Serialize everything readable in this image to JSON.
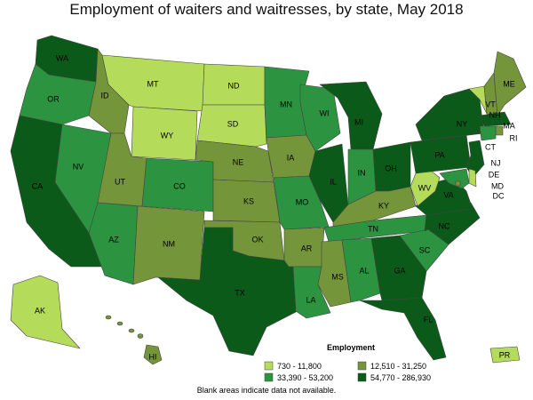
{
  "title": "Employment of waiters and waitresses, by state, May 2018",
  "footnote": "Blank areas indicate data not available.",
  "legend": {
    "title": "Employment",
    "items": [
      {
        "label": "730 - 11,800",
        "color": "#b5db5a"
      },
      {
        "label": "12,510 - 31,250",
        "color": "#75953a"
      },
      {
        "label": "33,390 - 53,200",
        "color": "#2c9440"
      },
      {
        "label": "54,770 - 286,930",
        "color": "#0b5a1a"
      }
    ]
  },
  "colors": {
    "c1": "#b5db5a",
    "c2": "#75953a",
    "c3": "#2c9440",
    "c4": "#0b5a1a",
    "stroke": "#444444"
  },
  "states": [
    {
      "abbr": "WA",
      "bin": 4
    },
    {
      "abbr": "OR",
      "bin": 3
    },
    {
      "abbr": "CA",
      "bin": 4
    },
    {
      "abbr": "NV",
      "bin": 3
    },
    {
      "abbr": "ID",
      "bin": 2
    },
    {
      "abbr": "MT",
      "bin": 1
    },
    {
      "abbr": "WY",
      "bin": 1
    },
    {
      "abbr": "UT",
      "bin": 2
    },
    {
      "abbr": "AZ",
      "bin": 3
    },
    {
      "abbr": "CO",
      "bin": 3
    },
    {
      "abbr": "NM",
      "bin": 2
    },
    {
      "abbr": "ND",
      "bin": 1
    },
    {
      "abbr": "SD",
      "bin": 1
    },
    {
      "abbr": "NE",
      "bin": 2
    },
    {
      "abbr": "KS",
      "bin": 2
    },
    {
      "abbr": "OK",
      "bin": 2
    },
    {
      "abbr": "TX",
      "bin": 4
    },
    {
      "abbr": "MN",
      "bin": 3
    },
    {
      "abbr": "IA",
      "bin": 2
    },
    {
      "abbr": "MO",
      "bin": 3
    },
    {
      "abbr": "AR",
      "bin": 2
    },
    {
      "abbr": "LA",
      "bin": 3
    },
    {
      "abbr": "WI",
      "bin": 3
    },
    {
      "abbr": "IL",
      "bin": 4
    },
    {
      "abbr": "MI",
      "bin": 4
    },
    {
      "abbr": "IN",
      "bin": 3
    },
    {
      "abbr": "OH",
      "bin": 4
    },
    {
      "abbr": "KY",
      "bin": 2
    },
    {
      "abbr": "TN",
      "bin": 3
    },
    {
      "abbr": "MS",
      "bin": 2
    },
    {
      "abbr": "AL",
      "bin": 3
    },
    {
      "abbr": "GA",
      "bin": 4
    },
    {
      "abbr": "FL",
      "bin": 4
    },
    {
      "abbr": "SC",
      "bin": 3
    },
    {
      "abbr": "NC",
      "bin": 4
    },
    {
      "abbr": "VA",
      "bin": 4
    },
    {
      "abbr": "WV",
      "bin": 1
    },
    {
      "abbr": "PA",
      "bin": 4
    },
    {
      "abbr": "NY",
      "bin": 4
    },
    {
      "abbr": "VT",
      "bin": 1
    },
    {
      "abbr": "NH",
      "bin": 2
    },
    {
      "abbr": "ME",
      "bin": 2
    },
    {
      "abbr": "MA",
      "bin": 4
    },
    {
      "abbr": "RI",
      "bin": 2
    },
    {
      "abbr": "CT",
      "bin": 3
    },
    {
      "abbr": "NJ",
      "bin": 4
    },
    {
      "abbr": "DE",
      "bin": 1
    },
    {
      "abbr": "MD",
      "bin": 3
    },
    {
      "abbr": "DC",
      "bin": 2
    },
    {
      "abbr": "AK",
      "bin": 1
    },
    {
      "abbr": "HI",
      "bin": 2
    },
    {
      "abbr": "PR",
      "bin": 1
    }
  ]
}
